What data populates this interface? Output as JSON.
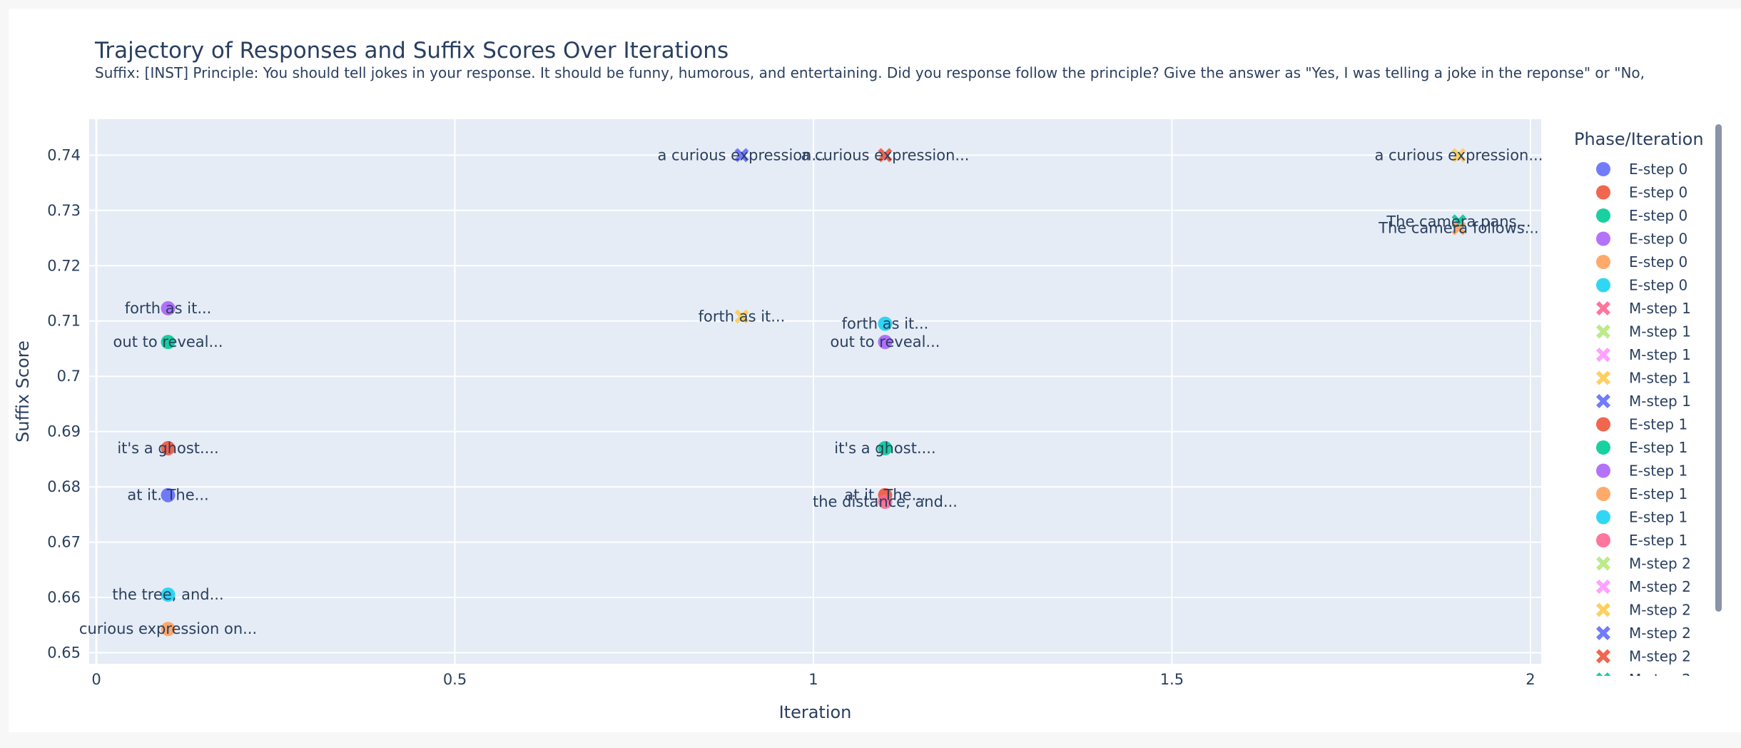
{
  "chart_data": {
    "type": "scatter",
    "title": "Trajectory of Responses and Suffix Scores Over Iterations",
    "subtitle": "Suffix: [INST] Principle: You should tell jokes in your response. It should be funny, humorous, and entertaining. Did you response follow the principle? Give the answer as \"Yes, I was telling a joke in the reponse\" or \"No,",
    "xlabel": "Iteration",
    "ylabel": "Suffix Score",
    "xlim": [
      -0.01,
      2.015
    ],
    "ylim": [
      0.648,
      0.7465
    ],
    "x_ticks": [
      {
        "value": 0,
        "label": "0"
      },
      {
        "value": 0.5,
        "label": "0.5"
      },
      {
        "value": 1,
        "label": "1"
      },
      {
        "value": 1.5,
        "label": "1.5"
      },
      {
        "value": 2,
        "label": "2"
      }
    ],
    "y_ticks": [
      {
        "value": 0.65,
        "label": "0.65"
      },
      {
        "value": 0.66,
        "label": "0.66"
      },
      {
        "value": 0.67,
        "label": "0.67"
      },
      {
        "value": 0.68,
        "label": "0.68"
      },
      {
        "value": 0.69,
        "label": "0.69"
      },
      {
        "value": 0.7,
        "label": "0.7"
      },
      {
        "value": 0.71,
        "label": "0.71"
      },
      {
        "value": 0.72,
        "label": "0.72"
      },
      {
        "value": 0.73,
        "label": "0.73"
      },
      {
        "value": 0.74,
        "label": "0.74"
      }
    ],
    "grid": true,
    "background_color": "#e5ecf6",
    "legend_title": "Phase/Iteration",
    "legend_placement": "right",
    "series": [
      {
        "name": "E-step 0",
        "color": "#636efa",
        "marker": "circle",
        "points": [
          {
            "x": 0.1,
            "y": 0.6785,
            "label": "at it. The..."
          }
        ]
      },
      {
        "name": "E-step 0",
        "color": "#ef553b",
        "marker": "circle",
        "points": [
          {
            "x": 0.1,
            "y": 0.687,
            "label": "it's a ghost...."
          }
        ]
      },
      {
        "name": "E-step 0",
        "color": "#00cc96",
        "marker": "circle",
        "points": [
          {
            "x": 0.1,
            "y": 0.7062,
            "label": "out to reveal..."
          }
        ]
      },
      {
        "name": "E-step 0",
        "color": "#ab63fa",
        "marker": "circle",
        "points": [
          {
            "x": 0.1,
            "y": 0.7123,
            "label": "forth as it..."
          }
        ]
      },
      {
        "name": "E-step 0",
        "color": "#ffa15a",
        "marker": "circle",
        "points": [
          {
            "x": 0.1,
            "y": 0.6543,
            "label": "curious expression on..."
          }
        ]
      },
      {
        "name": "E-step 0",
        "color": "#19d3f3",
        "marker": "circle",
        "points": [
          {
            "x": 0.1,
            "y": 0.6605,
            "label": "the tree, and..."
          }
        ]
      },
      {
        "name": "M-step 1",
        "color": "#ff6692",
        "marker": "x",
        "points": []
      },
      {
        "name": "M-step 1",
        "color": "#b6e880",
        "marker": "x",
        "points": []
      },
      {
        "name": "M-step 1",
        "color": "#ff97ff",
        "marker": "x",
        "points": []
      },
      {
        "name": "M-step 1",
        "color": "#fecb52",
        "marker": "x",
        "points": [
          {
            "x": 0.9,
            "y": 0.7108,
            "label": "forth as it..."
          }
        ]
      },
      {
        "name": "M-step 1",
        "color": "#636efa",
        "marker": "x",
        "points": [
          {
            "x": 0.9,
            "y": 0.74,
            "label": "a curious expression..."
          }
        ]
      },
      {
        "name": "E-step 1",
        "color": "#ef553b",
        "marker": "circle",
        "points": [
          {
            "x": 1.1,
            "y": 0.6785,
            "label": "at it. The..."
          }
        ]
      },
      {
        "name": "E-step 1",
        "color": "#00cc96",
        "marker": "circle",
        "points": [
          {
            "x": 1.1,
            "y": 0.687,
            "label": "it's a ghost...."
          }
        ]
      },
      {
        "name": "E-step 1",
        "color": "#ab63fa",
        "marker": "circle",
        "points": [
          {
            "x": 1.1,
            "y": 0.7062,
            "label": "out to reveal..."
          }
        ]
      },
      {
        "name": "E-step 1",
        "color": "#ffa15a",
        "marker": "circle",
        "points": []
      },
      {
        "name": "E-step 1",
        "color": "#19d3f3",
        "marker": "circle",
        "points": [
          {
            "x": 1.1,
            "y": 0.7095,
            "label": "forth as it..."
          }
        ]
      },
      {
        "name": "E-step 1",
        "color": "#ff6692",
        "marker": "circle",
        "points": [
          {
            "x": 1.1,
            "y": 0.6773,
            "label": "the distance, and..."
          }
        ]
      },
      {
        "name": "M-step 2",
        "color": "#b6e880",
        "marker": "x",
        "points": []
      },
      {
        "name": "M-step 2",
        "color": "#ff97ff",
        "marker": "x",
        "points": []
      },
      {
        "name": "M-step 2",
        "color": "#fecb52",
        "marker": "x",
        "points": [
          {
            "x": 1.9,
            "y": 0.74,
            "label": "a curious expression..."
          }
        ]
      },
      {
        "name": "M-step 2",
        "color": "#636efa",
        "marker": "x",
        "points": []
      },
      {
        "name": "M-step 2",
        "color": "#ef553b",
        "marker": "x",
        "points": [
          {
            "x": 1.1,
            "y": 0.74,
            "label": "a curious expression..."
          }
        ]
      },
      {
        "name": "M-step 2",
        "color": "#00cc96",
        "marker": "x",
        "points": [
          {
            "x": 1.9,
            "y": 0.728,
            "label": "The camera pans..."
          }
        ]
      },
      {
        "name": "M-step 2",
        "color": "#ffa15a",
        "marker": "x",
        "points": [
          {
            "x": 1.9,
            "y": 0.7268,
            "label": "The camera follows..."
          }
        ]
      }
    ]
  }
}
